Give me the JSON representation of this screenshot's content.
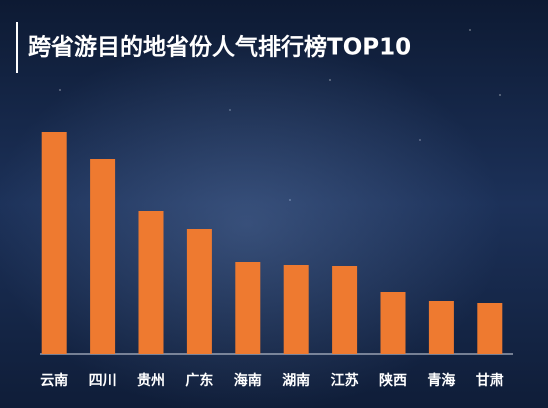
{
  "chart_data": {
    "type": "bar",
    "title": "跨省游目的地省份人气排行榜TOP10",
    "categories": [
      "云南",
      "四川",
      "贵州",
      "广东",
      "海南",
      "湖南",
      "江苏",
      "陕西",
      "青海",
      "甘肃"
    ],
    "values": [
      222,
      195,
      143,
      125,
      92,
      89,
      88,
      62,
      53,
      51
    ],
    "color": "#ee7a30",
    "ylim": [
      0,
      230
    ]
  }
}
